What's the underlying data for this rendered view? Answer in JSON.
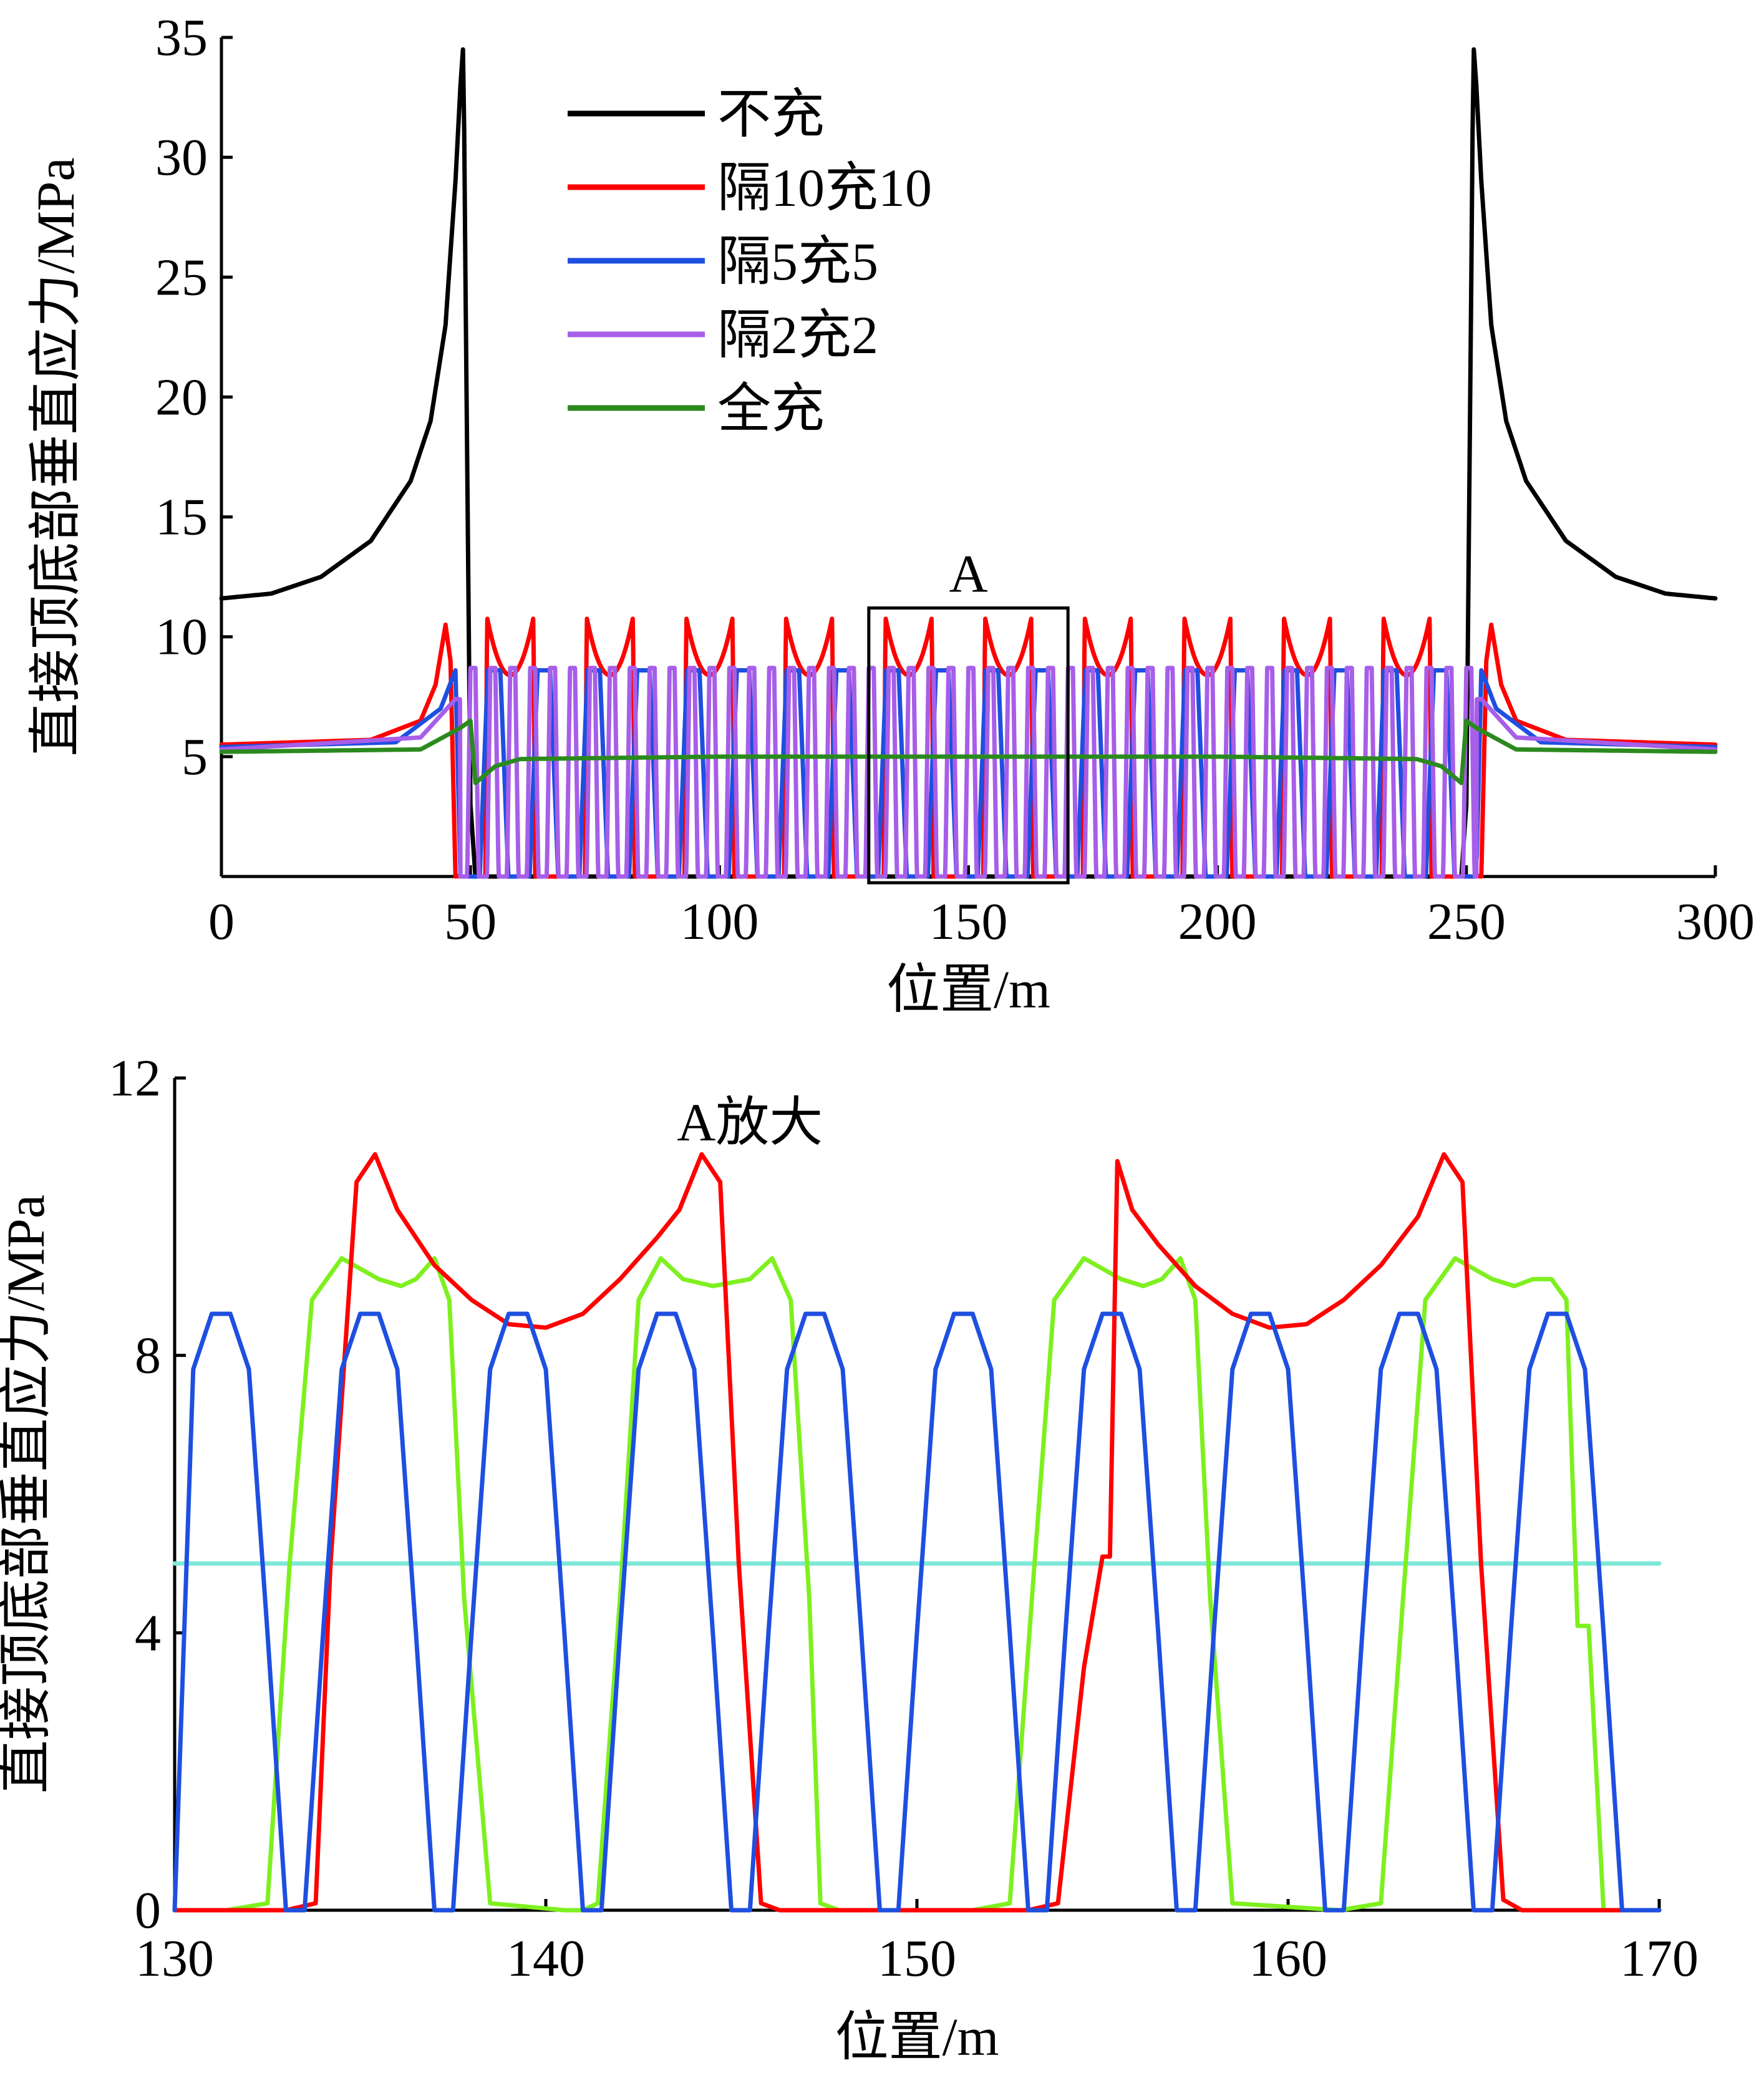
{
  "chart_data": [
    {
      "type": "line",
      "xlabel": "位置/m",
      "ylabel": "直接顶底部垂直应力/MPa",
      "xlim": [
        0,
        300
      ],
      "ylim": [
        0,
        35
      ],
      "xticks": [
        0,
        50,
        100,
        150,
        200,
        250,
        300
      ],
      "yticks": [
        5,
        10,
        15,
        20,
        25,
        30,
        35
      ],
      "grid": false,
      "legend_position": "top-center",
      "zoom_box": {
        "label": "A",
        "x": [
          130,
          170
        ],
        "y": [
          0,
          11.2
        ]
      },
      "series": [
        {
          "name": "不充",
          "color": "#000000",
          "model": "unfilled",
          "x": [
            0,
            10,
            20,
            30,
            38,
            42,
            45,
            47,
            48,
            48.6,
            49,
            50,
            51,
            55,
            100,
            150,
            200,
            245,
            249,
            250,
            251,
            251.4,
            252,
            253,
            255,
            258,
            262,
            270,
            280,
            290,
            300
          ],
          "y": [
            11.6,
            11.8,
            12.5,
            14,
            16.5,
            19,
            23,
            29,
            33,
            34.8,
            25,
            3,
            0,
            0,
            0,
            0,
            0,
            0,
            0,
            3,
            25,
            34.8,
            33,
            29,
            23,
            19,
            16.5,
            14,
            12.5,
            11.8,
            11.6
          ]
        },
        {
          "name": "隔10充10",
          "color": "#ff0000",
          "model": "peaks",
          "peak": 10.8,
          "trough": 8.4,
          "period": 20,
          "phase": 5,
          "fill_width": 10,
          "x": [
            0,
            30,
            40,
            43,
            45,
            46,
            47,
            300
          ],
          "y": [
            5.5,
            5.7,
            6.5,
            8,
            10.5,
            9,
            0,
            5.5
          ]
        },
        {
          "name": "隔5充5",
          "color": "#1e4fe0",
          "model": "blocks",
          "peak": 8.6,
          "trough": 8.1,
          "period": 10,
          "phase": 3,
          "x": [
            0,
            35,
            44,
            47,
            48,
            300
          ],
          "y": [
            5.4,
            5.6,
            7,
            8.6,
            0,
            5.4
          ]
        },
        {
          "name": "隔2充2",
          "color": "#a75ee8",
          "model": "blocks",
          "peak": 8.7,
          "trough": 8.7,
          "period": 4,
          "phase": 1,
          "x": [
            0,
            40,
            47,
            300
          ],
          "y": [
            5.3,
            5.8,
            7.4,
            5.3
          ]
        },
        {
          "name": "全充",
          "color": "#2b8a1e",
          "model": "plateau",
          "x": [
            0,
            40,
            48,
            50,
            51,
            55,
            60,
            100,
            150,
            200,
            240,
            245,
            249,
            250,
            252,
            260,
            300
          ],
          "y": [
            5.2,
            5.3,
            6.2,
            6.5,
            3.9,
            4.6,
            4.9,
            5.0,
            5.0,
            5.0,
            4.9,
            4.6,
            3.9,
            6.5,
            6.2,
            5.3,
            5.2
          ]
        }
      ]
    },
    {
      "type": "line",
      "xlabel": "位置/m",
      "ylabel": "直接顶底部垂直应力/MPa",
      "title": "A放大",
      "xlim": [
        130,
        170
      ],
      "ylim": [
        0,
        12
      ],
      "xticks": [
        130,
        140,
        150,
        160,
        170
      ],
      "yticks": [
        0,
        4,
        8,
        12
      ],
      "grid": false,
      "series": [
        {
          "color": "#ff0000",
          "x": [
            130,
            133,
            133.8,
            134.2,
            134.9,
            135.4,
            136,
            137,
            138,
            139,
            140,
            141,
            142,
            143,
            143.6,
            144.2,
            144.7,
            145.2,
            145.8,
            146.3,
            150,
            153,
            153.8,
            154.5,
            155,
            155.2,
            155.4,
            155.8,
            156.5,
            157.5,
            158.5,
            159.5,
            160.5,
            161.5,
            162.5,
            163.5,
            164.2,
            164.7,
            165.2,
            165.8,
            166.3,
            170
          ],
          "y": [
            0,
            0,
            0.1,
            5,
            10.5,
            10.9,
            10.1,
            9.3,
            8.8,
            8.45,
            8.4,
            8.6,
            9.1,
            9.7,
            10.1,
            10.9,
            10.5,
            5,
            0.1,
            0,
            0,
            0,
            0.1,
            3.5,
            5.1,
            5.1,
            10.8,
            10.1,
            9.6,
            9.0,
            8.6,
            8.4,
            8.45,
            8.8,
            9.3,
            10,
            10.9,
            10.5,
            5,
            0.15,
            0,
            0
          ]
        },
        {
          "color": "#7ef01f",
          "x": [
            130,
            131.4,
            132.5,
            133.1,
            133.7,
            134.5,
            135.5,
            136.1,
            136.5,
            137,
            137.4,
            137.8,
            138.5,
            140.5,
            141,
            141.4,
            142,
            142.5,
            143.1,
            143.7,
            144.5,
            145.5,
            146.1,
            146.6,
            147.1,
            147.4,
            147.9,
            148.5,
            151.5,
            152.5,
            153.1,
            153.7,
            154.5,
            155.5,
            156.1,
            156.6,
            157.1,
            157.5,
            157.9,
            158.5,
            161.4,
            162.5,
            163.1,
            163.7,
            164.5,
            165.5,
            166.1,
            166.6,
            167.1,
            167.5,
            167.8,
            168.1,
            168.5,
            169,
            170
          ],
          "y": [
            0,
            0,
            0.1,
            5,
            8.8,
            9.4,
            9.1,
            9.0,
            9.1,
            9.4,
            8.8,
            4.5,
            0.1,
            0,
            0,
            0.1,
            4.5,
            8.8,
            9.4,
            9.1,
            9.0,
            9.1,
            9.4,
            8.8,
            4.5,
            0.1,
            0,
            0,
            0,
            0.1,
            4.5,
            8.8,
            9.4,
            9.1,
            9.0,
            9.1,
            9.4,
            8.8,
            4.5,
            0.1,
            0,
            0.1,
            4.5,
            8.8,
            9.4,
            9.1,
            9.0,
            9.1,
            9.1,
            8.8,
            4.1,
            4.1,
            0,
            0,
            0
          ]
        },
        {
          "color": "#1e4fe0",
          "x": [
            130,
            130.5,
            131,
            131.5,
            132,
            132.5,
            133,
            133.5,
            134,
            134.5,
            135,
            135.5,
            136,
            136.5,
            137,
            137.5,
            138,
            138.5,
            139,
            139.5,
            140,
            140.5,
            141,
            141.5,
            142,
            142.5,
            143,
            143.5,
            144,
            144.5,
            145,
            145.5,
            146,
            146.5,
            147,
            147.5,
            148,
            148.5,
            149,
            149.5,
            150,
            150.5,
            151,
            151.5,
            152,
            152.5,
            153,
            153.5,
            154,
            154.5,
            155,
            155.5,
            156,
            156.5,
            157,
            157.5,
            158,
            158.5,
            159,
            159.5,
            160,
            160.5,
            161,
            161.5,
            162,
            162.5,
            163,
            163.5,
            164,
            164.5,
            165,
            165.5,
            166,
            166.5,
            167,
            167.5,
            168,
            168.5,
            169,
            169.5,
            170
          ],
          "y": [
            0,
            7.8,
            8.6,
            8.6,
            7.8,
            4,
            0,
            0,
            4,
            7.8,
            8.6,
            8.6,
            7.8,
            4,
            0,
            0,
            4,
            7.8,
            8.6,
            8.6,
            7.8,
            4,
            0,
            0,
            4,
            7.8,
            8.6,
            8.6,
            7.8,
            4,
            0,
            0,
            4,
            7.8,
            8.6,
            8.6,
            7.8,
            4,
            0,
            0,
            4,
            7.8,
            8.6,
            8.6,
            7.8,
            4,
            0,
            0,
            4,
            7.8,
            8.6,
            8.6,
            7.8,
            4,
            0,
            0,
            4,
            7.8,
            8.6,
            8.6,
            7.8,
            4,
            0,
            0,
            4,
            7.8,
            8.6,
            8.6,
            7.8,
            4,
            0,
            0,
            4,
            7.8,
            8.6,
            8.6,
            7.8,
            4,
            0,
            0,
            0
          ]
        },
        {
          "color": "#7fe8d8",
          "x": [
            130,
            170
          ],
          "y": [
            5.0,
            5.0
          ]
        }
      ]
    }
  ]
}
